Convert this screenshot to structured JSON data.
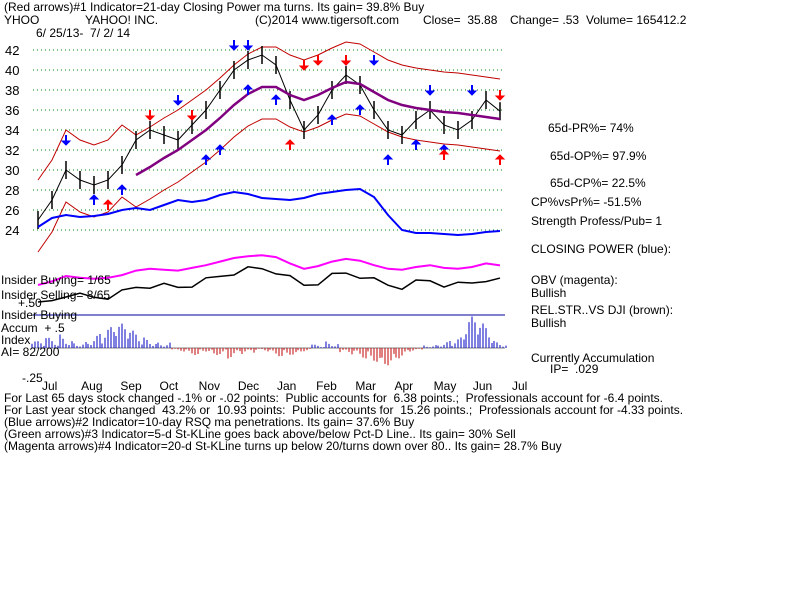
{
  "header": {
    "line1": "(Red arrows)#1 Indicator=21-day Closing Power ma turns. Its gain= 39.8% Buy",
    "symbol": "YHOO",
    "company": "YAHOO! INC.",
    "copyright": "(C)2014 www.tigersoft.com",
    "close": "Close=  35.88",
    "change": "Change= .53",
    "volume": "Volume= 165412.2",
    "date_range": "6/ 25/13-  7/ 2/ 14"
  },
  "right_panel": {
    "pr": "65d-PR%= 74%",
    "op": "65d-OP%= 97.9%",
    "cp": "65d-CP%= 22.5%",
    "cpvspr": "CP%vsPr%= -51.5%",
    "strength": "Strength Profess/Pub= 1",
    "closing_power": "CLOSING POWER (blue):",
    "obv": "OBV (magenta):",
    "obv_status": "Bullish",
    "relstr": "REL.STR..VS DJI (brown):",
    "relstr_status": "Bullish",
    "accum": "Currently Accumulation",
    "ip": "IP=  .029"
  },
  "left_labels": {
    "insider_buying_1": "Insider Buying= 1/65",
    "insider_selling": "Insider Selling= 8/65",
    "insider_buying_2": "Insider Buying",
    "accum_index": "Accum  + .5",
    "index": "Index",
    "ai": "AI= 82/200",
    "minus50": "+.50",
    "minus25": "-.25"
  },
  "footer": {
    "l1": "For Last 65 days stock changed -.1% or -.02 points:  Public accounts for  6.38 points.;  Professionals account for -6.4 points.",
    "l2": "For Last year stock changed  43.2% or  10.93 points:  Public accounts for  15.26 points.;  Professionals account for -4.33 points.",
    "l3": "(Blue arrows)#2 Indicator=10-day RSQ ma penetrations. Its gain= 37.6% Buy",
    "l4": "(Green arrows)#3 Indicator=5-d St-KLine goes back above/below Pct-D Line.. Its gain= 30% Sell",
    "l5": "(Magenta arrows)#4 Indicator=20-d St-KLine turns up below 20/turns down over 80.. Its gain= 28.7% Buy"
  },
  "chart_data": {
    "type": "line",
    "title": "YHOO YAHOO! INC.",
    "ylim": [
      23,
      43
    ],
    "y_ticks": [
      42,
      40,
      38,
      36,
      34,
      32,
      30,
      28,
      26,
      24
    ],
    "x_ticks": [
      "Jul",
      "Aug",
      "Sep",
      "Oct",
      "Nov",
      "Dec",
      "Jan",
      "Feb",
      "Mar",
      "Apr",
      "May",
      "Jun",
      "Jul"
    ],
    "grid": true,
    "colors": {
      "price": "#000000",
      "upper_band": "#c00000",
      "ma": "#800080",
      "closing_power": "#0000ff",
      "obv": "#ff00ff",
      "relstr": "#000000",
      "accum_pos": "#0000c0",
      "accum_neg": "#c00000",
      "grid": "#008000",
      "arrow_blue": "#0000ff",
      "arrow_red": "#ff0000"
    },
    "series": [
      {
        "name": "Price",
        "values": [
          25,
          27,
          30,
          29,
          28.5,
          29,
          30.5,
          33,
          34,
          33.5,
          33,
          34.5,
          36,
          38,
          40,
          41,
          41.5,
          40.5,
          37,
          34,
          35.5,
          38,
          39.5,
          38.5,
          36,
          34,
          33.5,
          35,
          36,
          34.5,
          34,
          35,
          37,
          35.88
        ]
      },
      {
        "name": "MA",
        "values": [
          null,
          null,
          null,
          null,
          null,
          null,
          null,
          29.5,
          30.3,
          31.2,
          32,
          33,
          34,
          35.2,
          36.5,
          37.6,
          38.3,
          38.3,
          37.5,
          37,
          37.5,
          38.2,
          38.8,
          38.6,
          37.8,
          37,
          36.5,
          36.2,
          36,
          35.8,
          35.7,
          35.5,
          35.3,
          35.1
        ]
      },
      {
        "name": "Closing Power",
        "values": [
          24.3,
          25.2,
          25.5,
          25.3,
          25.4,
          25.6,
          26,
          26.2,
          26,
          26.5,
          27,
          26.8,
          27,
          27.5,
          27.8,
          27.6,
          27.2,
          27.1,
          27,
          27.2,
          27.6,
          27.8,
          28,
          28.1,
          27.3,
          25.5,
          24,
          23.7,
          23.7,
          23.6,
          23.5,
          23.6,
          23.8,
          23.9
        ]
      }
    ],
    "arrows": {
      "blue_up": [
        {
          "x": 4,
          "y": 27.5
        },
        {
          "x": 6,
          "y": 28.5
        },
        {
          "x": 12,
          "y": 31.5
        },
        {
          "x": 13,
          "y": 32.5
        },
        {
          "x": 15,
          "y": 38.5
        },
        {
          "x": 17,
          "y": 37.5
        },
        {
          "x": 21,
          "y": 35.5
        },
        {
          "x": 23,
          "y": 36.5
        },
        {
          "x": 25,
          "y": 31.5
        },
        {
          "x": 27,
          "y": 33
        },
        {
          "x": 29,
          "y": 32.5
        }
      ],
      "blue_down": [
        {
          "x": 2,
          "y": 32.5
        },
        {
          "x": 10,
          "y": 36.5
        },
        {
          "x": 14,
          "y": 42
        },
        {
          "x": 15,
          "y": 42
        },
        {
          "x": 22,
          "y": 40.5
        },
        {
          "x": 24,
          "y": 40.5
        },
        {
          "x": 28,
          "y": 37.5
        },
        {
          "x": 31,
          "y": 37.5
        }
      ],
      "red_up": [
        {
          "x": 5,
          "y": 27
        },
        {
          "x": 18,
          "y": 33
        },
        {
          "x": 29,
          "y": 32
        },
        {
          "x": 33,
          "y": 31.5
        }
      ],
      "red_down": [
        {
          "x": 8,
          "y": 35
        },
        {
          "x": 11,
          "y": 35
        },
        {
          "x": 19,
          "y": 40
        },
        {
          "x": 20,
          "y": 40.5
        },
        {
          "x": 22,
          "y": 40.5
        },
        {
          "x": 33,
          "y": 37
        }
      ]
    },
    "accumulation": [
      0.1,
      0.15,
      0.2,
      0.1,
      0.2,
      0.3,
      0.35,
      0.25,
      0.15,
      0.1,
      -0.05,
      -0.1,
      -0.05,
      -0.1,
      -0.15,
      -0.1,
      -0.05,
      -0.12,
      -0.1,
      -0.05,
      0.05,
      0.1,
      -0.1,
      -0.15,
      -0.2,
      -0.25,
      -0.15,
      -0.05,
      0.05,
      0.1,
      0.15,
      0.45,
      0.35,
      0.1
    ]
  }
}
